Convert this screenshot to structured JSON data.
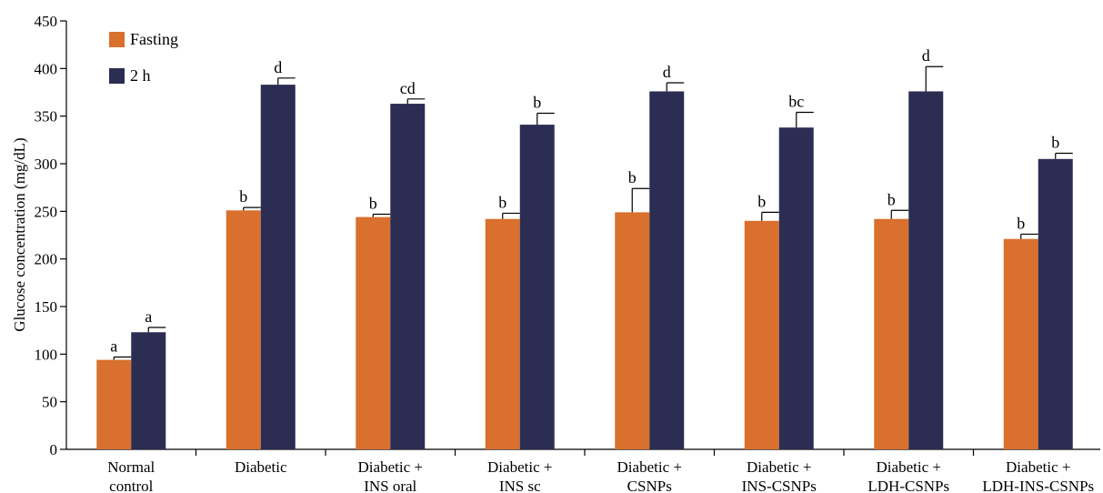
{
  "chart_data": {
    "type": "bar",
    "title": "",
    "xlabel": "",
    "ylabel": "Glucose concentration (mg/dL)",
    "ylim": [
      0,
      450
    ],
    "yticks": [
      0,
      50,
      100,
      150,
      200,
      250,
      300,
      350,
      400,
      450
    ],
    "grid": false,
    "legend_position": "top-left",
    "categories": [
      [
        "Normal",
        "control"
      ],
      [
        "Diabetic"
      ],
      [
        "Diabetic +",
        "INS oral"
      ],
      [
        "Diabetic +",
        "INS sc"
      ],
      [
        "Diabetic +",
        "CSNPs"
      ],
      [
        "Diabetic +",
        "INS-CSNPs"
      ],
      [
        "Diabetic +",
        "LDH-CSNPs"
      ],
      [
        "Diabetic +",
        "LDH-INS-CSNPs"
      ]
    ],
    "series": [
      {
        "name": "Fasting",
        "color": "#d9702e",
        "values": [
          94,
          251,
          244,
          242,
          249,
          240,
          242,
          221
        ],
        "errors": [
          3,
          3,
          3,
          6,
          25,
          9,
          9,
          5
        ],
        "labels": [
          "a",
          "b",
          "b",
          "b",
          "b",
          "b",
          "b",
          "b"
        ]
      },
      {
        "name": "2 h",
        "color": "#2b2d52",
        "values": [
          123,
          383,
          363,
          341,
          376,
          338,
          376,
          305
        ],
        "errors": [
          5,
          7,
          5,
          12,
          9,
          16,
          26,
          6
        ],
        "labels": [
          "a",
          "d",
          "cd",
          "b",
          "d",
          "bc",
          "d",
          "b"
        ]
      }
    ]
  }
}
